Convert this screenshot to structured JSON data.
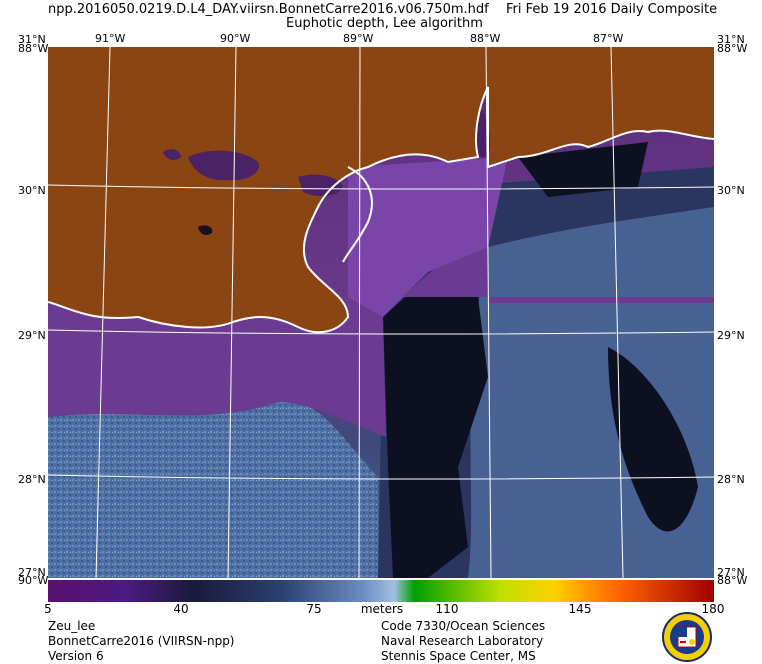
{
  "header": {
    "file_name": "npp.2016050.0219.D.L4_DAY.viirsn.BonnetCarre2016.v06.750m.hdf",
    "date_label": "Fri Feb 19 2016 Daily Composite",
    "product_title": "Euphotic depth, Lee algorithm"
  },
  "map": {
    "lon_labels": [
      "91°W",
      "90°W",
      "89°W",
      "88°W",
      "87°W"
    ],
    "lat_labels": [
      "31°N",
      "30°N",
      "29°N",
      "28°N",
      "27°N"
    ],
    "corner_labels": {
      "top_left_lat": "31°N",
      "top_left_lon": "88°W",
      "top_right_lat": "31°N",
      "top_right_lon": "88°W",
      "bottom_left_lat": "27°N",
      "bottom_left_lon": "90°W",
      "bottom_right_lat": "27°N",
      "bottom_right_lon": "88°W"
    },
    "colors": {
      "land": "#8b4513",
      "coast": "#ffffff",
      "grid": "#ffffff"
    }
  },
  "colorbar": {
    "min": 5,
    "max": 180,
    "unit": "meters",
    "ticks": [
      {
        "label": "5",
        "value": 5
      },
      {
        "label": "40",
        "value": 40
      },
      {
        "label": "75",
        "value": 75
      },
      {
        "label": "110",
        "value": 110
      },
      {
        "label": "145",
        "value": 145
      },
      {
        "label": "180",
        "value": 180
      }
    ]
  },
  "footer": {
    "left": [
      "Zeu_lee",
      "BonnetCarre2016 (VIIRSN-npp)",
      "Version 6"
    ],
    "right": [
      "Code 7330/Ocean Sciences",
      "Naval Research Laboratory",
      "Stennis Space Center, MS"
    ]
  },
  "logo": {
    "icon": "nrl-seal-icon"
  }
}
